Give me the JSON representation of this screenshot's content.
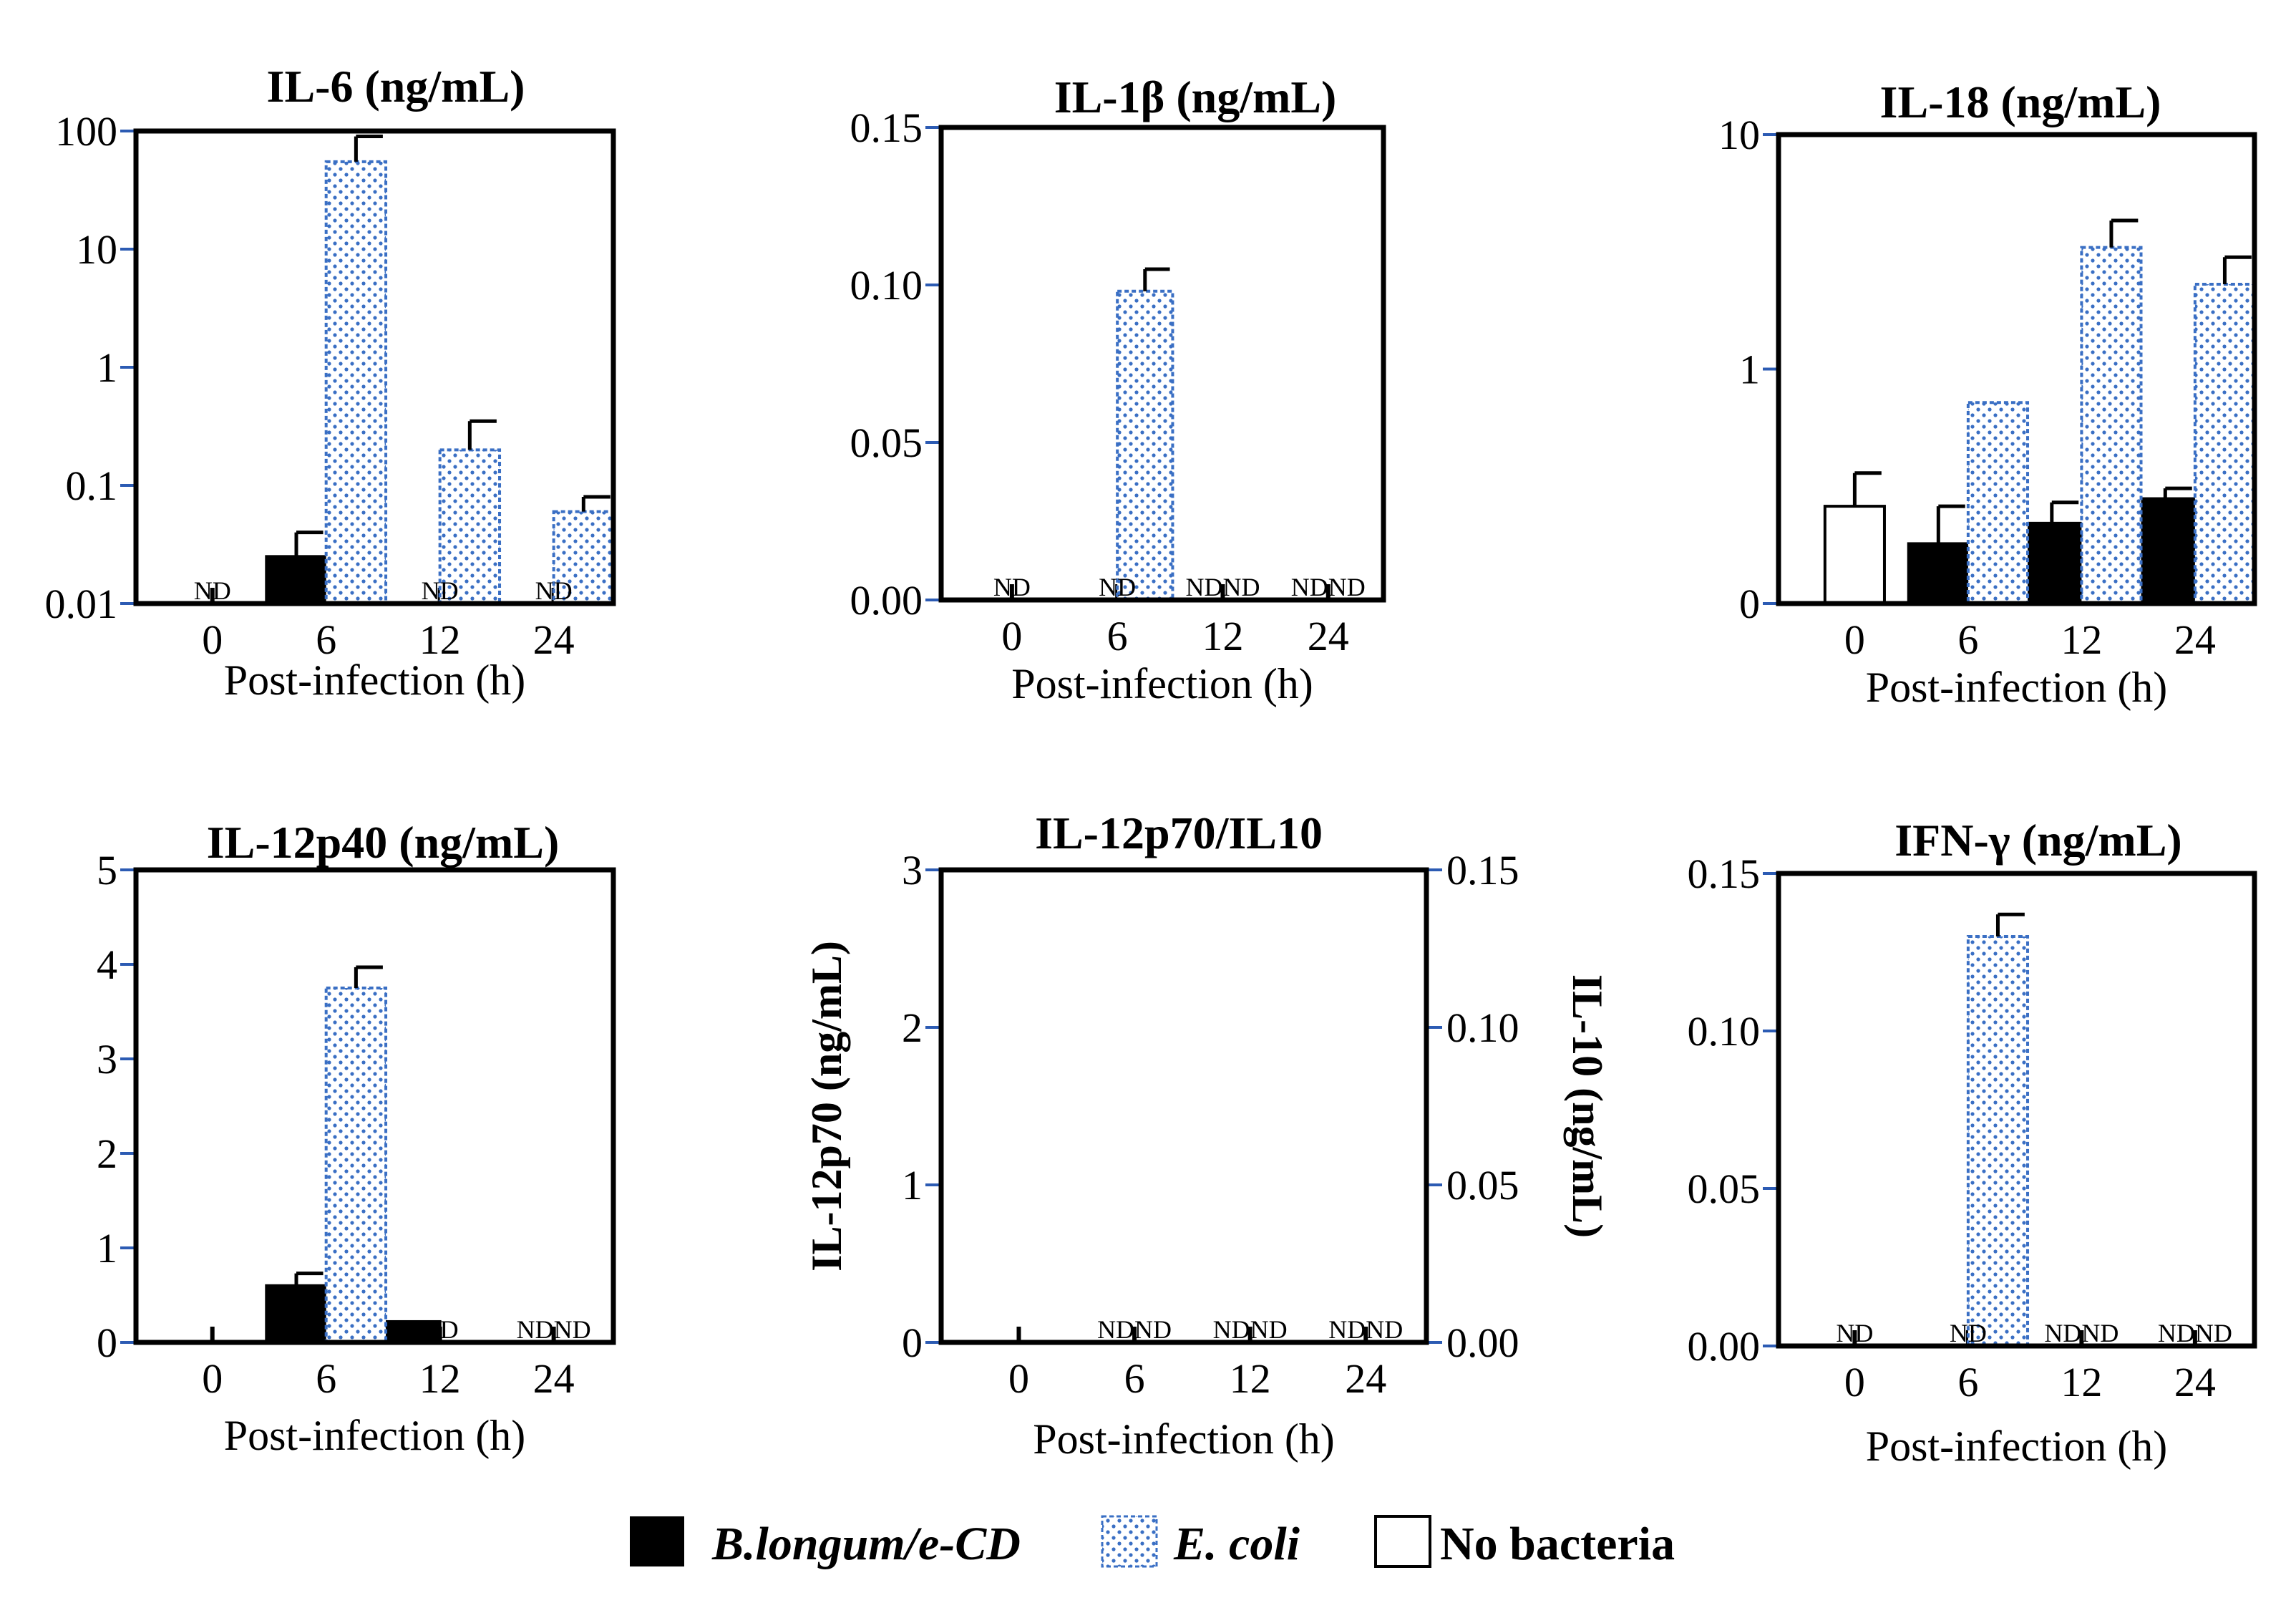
{
  "colors": {
    "blongum": "#000000",
    "ecoli_dot": "#3a6fc4",
    "no_bacteria": "#ffffff",
    "tick_mark": "#2c5bb3"
  },
  "legend": {
    "items": [
      {
        "key": "blongum",
        "label": "B.longum/e-CD"
      },
      {
        "key": "ecoli",
        "label": "E. coli"
      },
      {
        "key": "none",
        "label": "No bacteria"
      }
    ]
  },
  "chart_data": [
    {
      "id": "il6",
      "type": "bar",
      "title": "IL-6 (ng/mL)",
      "xlabel": "Post-infection (h)",
      "scale": "log",
      "ylim": [
        0.01,
        100
      ],
      "yticks": [
        0.01,
        0.1,
        1,
        10,
        100
      ],
      "ytick_labels": [
        "0.01",
        "0.1",
        "1",
        "10",
        "100"
      ],
      "categories": [
        "0",
        "6",
        "12",
        "24"
      ],
      "series": [
        {
          "name": "B.longum/e-CD",
          "key": "blongum",
          "values": [
            null,
            0.025,
            null,
            null
          ],
          "errors": [
            null,
            0.015,
            null,
            null
          ]
        },
        {
          "name": "E. coli",
          "key": "ecoli",
          "values": [
            null,
            55,
            0.2,
            0.06
          ],
          "errors": [
            null,
            35,
            0.15,
            0.02
          ]
        }
      ],
      "nd": [
        {
          "cat": 0,
          "text": "ND"
        },
        {
          "cat": 2,
          "text": "ND"
        },
        {
          "cat": 3,
          "text": "ND"
        }
      ]
    },
    {
      "id": "il1b",
      "type": "bar",
      "title": "IL-1β (ng/mL)",
      "xlabel": "Post-infection (h)",
      "scale": "linear",
      "ylim": [
        0,
        0.15
      ],
      "yticks": [
        0,
        0.05,
        0.1,
        0.15
      ],
      "ytick_labels": [
        "0.00",
        "0.05",
        "0.10",
        "0.15"
      ],
      "categories": [
        "0",
        "6",
        "12",
        "24"
      ],
      "series": [
        {
          "name": "E. coli",
          "key": "ecoli",
          "values": [
            null,
            0.098,
            null,
            null
          ],
          "errors": [
            null,
            0.007,
            null,
            null
          ]
        }
      ],
      "nd": [
        {
          "cat": 0,
          "text": "ND"
        },
        {
          "cat": 1,
          "text": "ND"
        },
        {
          "cat": 2,
          "text": "NDND"
        },
        {
          "cat": 3,
          "text": "NDND"
        }
      ]
    },
    {
      "id": "il18",
      "type": "bar",
      "title": "IL-18 (ng/mL)",
      "xlabel": "Post-infection (h)",
      "scale": "log_zero",
      "ylim": [
        0,
        10
      ],
      "yticks": [
        0,
        1,
        10
      ],
      "ytick_labels": [
        "0",
        "1",
        "10"
      ],
      "categories": [
        "0",
        "6",
        "12",
        "24"
      ],
      "series": [
        {
          "name": "B.longum/e-CD",
          "key": "blongum",
          "values": [
            null,
            0.18,
            0.22,
            0.28
          ],
          "errors": [
            null,
            0.08,
            0.05,
            0.03
          ]
        },
        {
          "name": "E. coli",
          "key": "ecoli",
          "values": [
            null,
            0.72,
            3.3,
            2.3
          ],
          "errors": [
            null,
            0,
            1.0,
            0.7
          ]
        },
        {
          "name": "No bacteria",
          "key": "none",
          "values": [
            0.26,
            null,
            null,
            null
          ],
          "errors": [
            0.1,
            null,
            null,
            null
          ]
        }
      ],
      "nd": []
    },
    {
      "id": "il12p40",
      "type": "bar",
      "title": "IL-12p40 (ng/mL)",
      "xlabel": "Post-infection (h)",
      "scale": "linear",
      "ylim": [
        0,
        5
      ],
      "yticks": [
        0,
        1,
        2,
        3,
        4,
        5
      ],
      "ytick_labels": [
        "0",
        "1",
        "2",
        "3",
        "4",
        "5"
      ],
      "categories": [
        "0",
        "6",
        "12",
        "24"
      ],
      "series": [
        {
          "name": "B.longum/e-CD",
          "key": "blongum",
          "values": [
            null,
            0.6,
            0.22,
            null
          ],
          "errors": [
            null,
            0.13,
            0,
            null
          ]
        },
        {
          "name": "E. coli",
          "key": "ecoli",
          "values": [
            null,
            3.75,
            null,
            null
          ],
          "errors": [
            null,
            0.22,
            null,
            null
          ]
        }
      ],
      "nd": [
        {
          "cat": 2,
          "text": "ND"
        },
        {
          "cat": 3,
          "text": "NDND"
        }
      ]
    },
    {
      "id": "il12p70",
      "type": "bar",
      "title": "IL-12p70/IL10",
      "xlabel": "Post-infection (h)",
      "scale": "linear",
      "ylim": [
        0,
        3
      ],
      "yticks": [
        0,
        1,
        2,
        3
      ],
      "ytick_labels": [
        "0",
        "1",
        "2",
        "3"
      ],
      "ylabel": "IL-12p70 (ng/mL)",
      "y2lim": [
        0,
        0.15
      ],
      "y2ticks": [
        0,
        0.05,
        0.1,
        0.15
      ],
      "y2tick_labels": [
        "0.00",
        "0.05",
        "0.10",
        "0.15"
      ],
      "y2label": "IL-10 (ng/mL)",
      "categories": [
        "0",
        "6",
        "12",
        "24"
      ],
      "series": [],
      "nd": [
        {
          "cat": 1,
          "text": "NDND"
        },
        {
          "cat": 2,
          "text": "NDND"
        },
        {
          "cat": 3,
          "text": "NDND"
        }
      ]
    },
    {
      "id": "ifng",
      "type": "bar",
      "title": "IFN-γ (ng/mL)",
      "xlabel": "Post-infection (h)",
      "scale": "linear",
      "ylim": [
        0,
        0.15
      ],
      "yticks": [
        0,
        0.05,
        0.1,
        0.15
      ],
      "ytick_labels": [
        "0.00",
        "0.05",
        "0.10",
        "0.15"
      ],
      "categories": [
        "0",
        "6",
        "12",
        "24"
      ],
      "series": [
        {
          "name": "E. coli",
          "key": "ecoli",
          "values": [
            null,
            0.13,
            null,
            null
          ],
          "errors": [
            null,
            0.007,
            null,
            null
          ]
        }
      ],
      "nd": [
        {
          "cat": 0,
          "text": "ND"
        },
        {
          "cat": 1,
          "text": "ND"
        },
        {
          "cat": 2,
          "text": "NDND"
        },
        {
          "cat": 3,
          "text": "NDND"
        }
      ]
    }
  ]
}
